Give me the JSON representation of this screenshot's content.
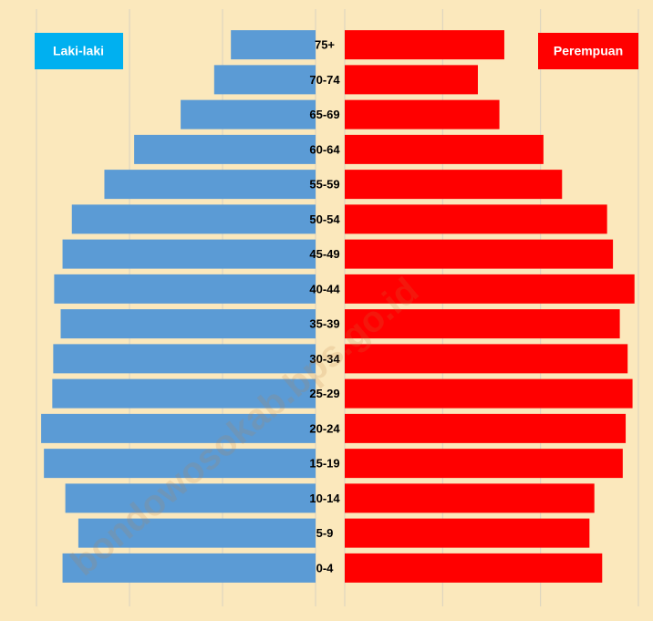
{
  "chart_data": {
    "type": "pyramid",
    "categories": [
      "75+",
      "70-74",
      "65-69",
      "60-64",
      "55-59",
      "50-54",
      "45-49",
      "40-44",
      "35-39",
      "30-34",
      "25-29",
      "20-24",
      "15-19",
      "10-14",
      "5-9",
      "0-4"
    ],
    "series": [
      {
        "name": "Laki-laki",
        "color": "#5b9bd5",
        "legend_color": "#00b0f0",
        "values": [
          9.1,
          10.9,
          14.5,
          19.5,
          22.7,
          26.2,
          27.2,
          28.1,
          27.4,
          28.2,
          28.3,
          29.5,
          29.2,
          26.9,
          25.5,
          27.2
        ]
      },
      {
        "name": "Perempuan",
        "color": "#ff0000",
        "legend_color": "#ff0000",
        "values": [
          16.3,
          13.6,
          15.8,
          20.3,
          22.2,
          26.8,
          27.4,
          29.6,
          28.1,
          28.9,
          29.4,
          28.7,
          28.4,
          25.5,
          25.0,
          26.3
        ]
      }
    ],
    "xlim": [
      0,
      30
    ],
    "xticks": [
      0,
      10,
      20,
      30
    ],
    "grid": true,
    "watermark": "bondowosokab.bps.go.id"
  }
}
